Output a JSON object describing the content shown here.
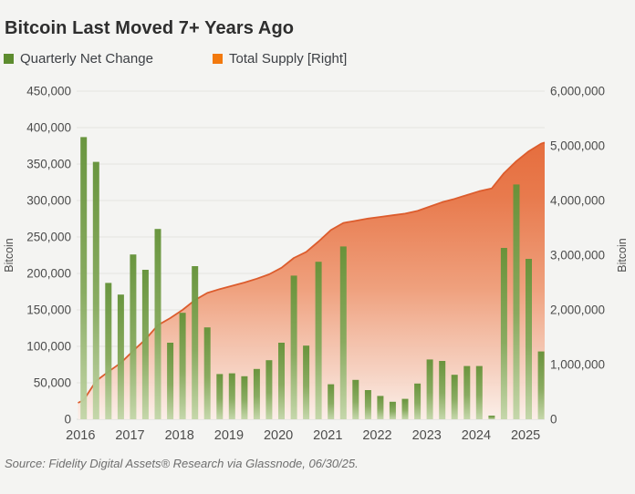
{
  "source": "Source: Fidelity Digital Assets® Research via Glassnode, 06/30/25.",
  "colors": {
    "background": "#f4f4f2",
    "bar_top": "#649238",
    "bar_bottom": "#c3d6a8",
    "area_stroke": "#dc5c2d",
    "area_top": "#e4622f",
    "area_mid": "#efa07d",
    "area_bottom": "#fceee7",
    "legend_green": "#5d8c2f",
    "legend_orange": "#f2790e",
    "grid": "#e3e4e0",
    "axis_text": "#4c4c4c",
    "title_text": "#2e2e2e",
    "source_text": "#6e6e6e"
  },
  "chart_data": {
    "type": "combo",
    "title": "Bitcoin Last Moved 7+ Years Ago",
    "grid": "horizontal",
    "legend_position": "top-left",
    "x_quarters": [
      "2016-Q1",
      "2016-Q2",
      "2016-Q3",
      "2016-Q4",
      "2017-Q1",
      "2017-Q2",
      "2017-Q3",
      "2017-Q4",
      "2018-Q1",
      "2018-Q2",
      "2018-Q3",
      "2018-Q4",
      "2019-Q1",
      "2019-Q2",
      "2019-Q3",
      "2019-Q4",
      "2020-Q1",
      "2020-Q2",
      "2020-Q3",
      "2020-Q4",
      "2021-Q1",
      "2021-Q2",
      "2021-Q3",
      "2021-Q4",
      "2022-Q1",
      "2022-Q2",
      "2022-Q3",
      "2022-Q4",
      "2023-Q1",
      "2023-Q2",
      "2023-Q3",
      "2023-Q4",
      "2024-Q1",
      "2024-Q2",
      "2024-Q3",
      "2024-Q4",
      "2025-Q1",
      "2025-Q2"
    ],
    "x_year_ticks": [
      "2016",
      "2017",
      "2018",
      "2019",
      "2020",
      "2021",
      "2022",
      "2023",
      "2024",
      "2025"
    ],
    "series": [
      {
        "name": "Quarterly Net Change",
        "type": "bar",
        "axis": "left",
        "values": [
          387000,
          353000,
          187000,
          171000,
          226000,
          205000,
          261000,
          105000,
          146000,
          210000,
          126000,
          62000,
          63000,
          59000,
          69000,
          81000,
          105000,
          197000,
          101000,
          216000,
          48000,
          237000,
          54000,
          40000,
          32000,
          24000,
          28000,
          49000,
          82000,
          80000,
          61000,
          73000,
          73000,
          5000,
          235000,
          322000,
          220000,
          93000
        ]
      },
      {
        "name": "Total Supply [Right]",
        "type": "area",
        "axis": "right",
        "values": [
          350000,
          700000,
          870000,
          1030000,
          1250000,
          1460000,
          1720000,
          1850000,
          2000000,
          2180000,
          2310000,
          2380000,
          2440000,
          2500000,
          2570000,
          2650000,
          2770000,
          2950000,
          3060000,
          3250000,
          3460000,
          3590000,
          3630000,
          3670000,
          3700000,
          3730000,
          3760000,
          3810000,
          3890000,
          3970000,
          4030000,
          4100000,
          4170000,
          4220000,
          4500000,
          4720000,
          4900000,
          5040000
        ],
        "edge_start_value": 300000,
        "edge_end_value": 5060000
      }
    ],
    "left_axis": {
      "title": "Bitcoin",
      "min": 0,
      "max": 450000,
      "step": 50000,
      "tick_labels": [
        "450,000",
        "400,000",
        "350,000",
        "300,000",
        "250,000",
        "200,000",
        "150,000",
        "100,000",
        "50,000",
        "0"
      ]
    },
    "right_axis": {
      "title": "Bitcoin",
      "min": 0,
      "max": 6000000,
      "step": 1000000,
      "tick_labels": [
        "6,000,000",
        "5,000,000",
        "4,000,000",
        "3,000,000",
        "2,000,000",
        "1,000,000",
        "0"
      ]
    }
  }
}
